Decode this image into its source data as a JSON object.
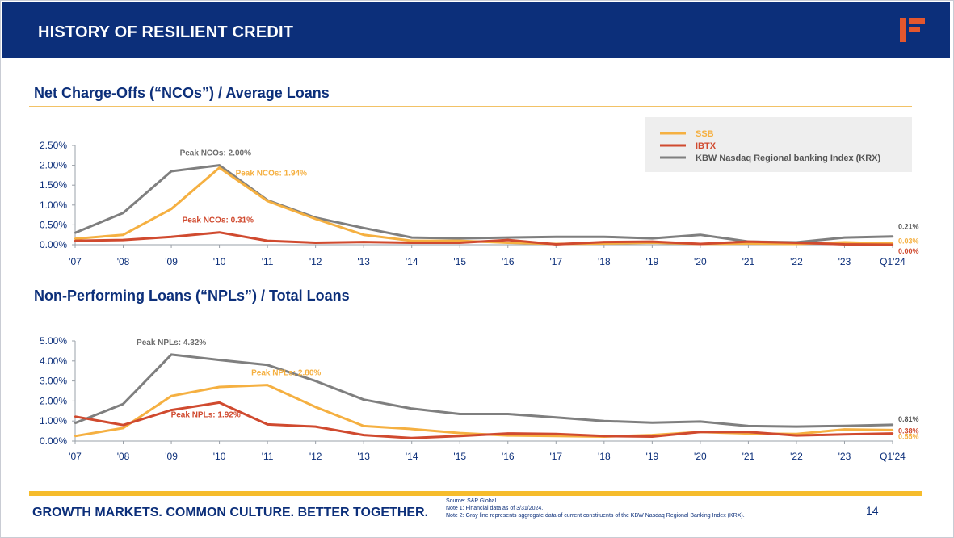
{
  "header": {
    "title": "HISTORY OF RESILIENT CREDIT"
  },
  "logo": {
    "icon": "company-f-logo-icon",
    "color": "#e4572e"
  },
  "colors": {
    "ssb": "#f5b041",
    "ibtx": "#d04a2f",
    "krx": "#7f7f7f",
    "navy": "#0c2f7a",
    "gold": "#f6bc2c"
  },
  "footer": {
    "tagline": "GROWTH MARKETS. COMMON CULTURE. BETTER TOGETHER.",
    "source": "Source: S&P Global.",
    "note1": "Note 1: Financial data as of 3/31/2024.",
    "note2": "Note 2: Gray line represents aggregate data of current constituents of the KBW Nasdaq Regional Banking Index (KRX).",
    "page": "14"
  },
  "chart_data": [
    {
      "type": "line",
      "title": "Net Charge-Offs (“NCOs”) / Average Loans",
      "categories": [
        "'07",
        "'08",
        "'09",
        "'10",
        "'11",
        "'12",
        "'13",
        "'14",
        "'15",
        "'16",
        "'17",
        "'18",
        "'19",
        "'20",
        "'21",
        "'22",
        "'23",
        "Q1'24"
      ],
      "ylim": [
        0,
        2.5
      ],
      "yticks": [
        "0.00%",
        "0.50%",
        "1.00%",
        "1.50%",
        "2.00%",
        "2.50%"
      ],
      "legend_position": "top-right",
      "series": [
        {
          "key": "ssb",
          "name": "SSB",
          "values": [
            0.15,
            0.25,
            0.9,
            1.94,
            1.1,
            0.65,
            0.25,
            0.1,
            0.1,
            0.05,
            0.02,
            0.03,
            0.05,
            0.02,
            0.03,
            0.02,
            0.06,
            0.03
          ]
        },
        {
          "key": "ibtx",
          "name": "IBTX",
          "values": [
            0.1,
            0.12,
            0.2,
            0.31,
            0.1,
            0.05,
            0.07,
            0.05,
            0.05,
            0.12,
            0.01,
            0.07,
            0.08,
            0.02,
            0.08,
            0.05,
            0.01,
            0.0
          ]
        },
        {
          "key": "krx",
          "name": "KBW Nasdaq Regional banking Index (KRX)",
          "values": [
            0.3,
            0.8,
            1.85,
            2.0,
            1.12,
            0.68,
            0.42,
            0.18,
            0.16,
            0.18,
            0.2,
            0.2,
            0.16,
            0.25,
            0.08,
            0.06,
            0.18,
            0.21
          ]
        }
      ],
      "annotations": [
        {
          "text": "Peak NCOs: 2.00%",
          "series": "krx"
        },
        {
          "text": "Peak NCOs: 1.94%",
          "series": "ssb"
        },
        {
          "text": "Peak NCOs: 0.31%",
          "series": "ibtx"
        }
      ],
      "end_labels": [
        {
          "text": "0.21%",
          "series": "krx"
        },
        {
          "text": "0.03%",
          "series": "ssb"
        },
        {
          "text": "0.00%",
          "series": "ibtx"
        }
      ]
    },
    {
      "type": "line",
      "title": "Non-Performing Loans (“NPLs”) / Total Loans",
      "categories": [
        "'07",
        "'08",
        "'09",
        "'10",
        "'11",
        "'12",
        "'13",
        "'14",
        "'15",
        "'16",
        "'17",
        "'18",
        "'19",
        "'20",
        "'21",
        "'22",
        "'23",
        "Q1'24"
      ],
      "ylim": [
        0,
        5
      ],
      "yticks": [
        "0.00%",
        "1.00%",
        "2.00%",
        "3.00%",
        "4.00%",
        "5.00%"
      ],
      "series": [
        {
          "key": "ssb",
          "name": "SSB",
          "values": [
            0.25,
            0.65,
            2.25,
            2.7,
            2.8,
            1.7,
            0.75,
            0.6,
            0.4,
            0.28,
            0.25,
            0.22,
            0.3,
            0.45,
            0.38,
            0.35,
            0.58,
            0.55
          ]
        },
        {
          "key": "ibtx",
          "name": "IBTX",
          "values": [
            1.22,
            0.8,
            1.55,
            1.92,
            0.83,
            0.72,
            0.3,
            0.15,
            0.25,
            0.38,
            0.35,
            0.25,
            0.22,
            0.45,
            0.45,
            0.28,
            0.33,
            0.38
          ]
        },
        {
          "key": "krx",
          "name": "KBW Nasdaq Regional banking Index (KRX)",
          "values": [
            0.9,
            1.85,
            4.32,
            4.05,
            3.8,
            3.0,
            2.07,
            1.62,
            1.35,
            1.35,
            1.18,
            1.0,
            0.92,
            0.97,
            0.75,
            0.72,
            0.76,
            0.81
          ]
        }
      ],
      "annotations": [
        {
          "text": "Peak NPLs: 4.32%",
          "series": "krx"
        },
        {
          "text": "Peak NPLs: 2.80%",
          "series": "ssb"
        },
        {
          "text": "Peak NPLs: 1.92%",
          "series": "ibtx"
        }
      ],
      "end_labels": [
        {
          "text": "0.81%",
          "series": "krx"
        },
        {
          "text": "0.55%",
          "series": "ssb"
        },
        {
          "text": "0.38%",
          "series": "ibtx"
        }
      ]
    }
  ]
}
